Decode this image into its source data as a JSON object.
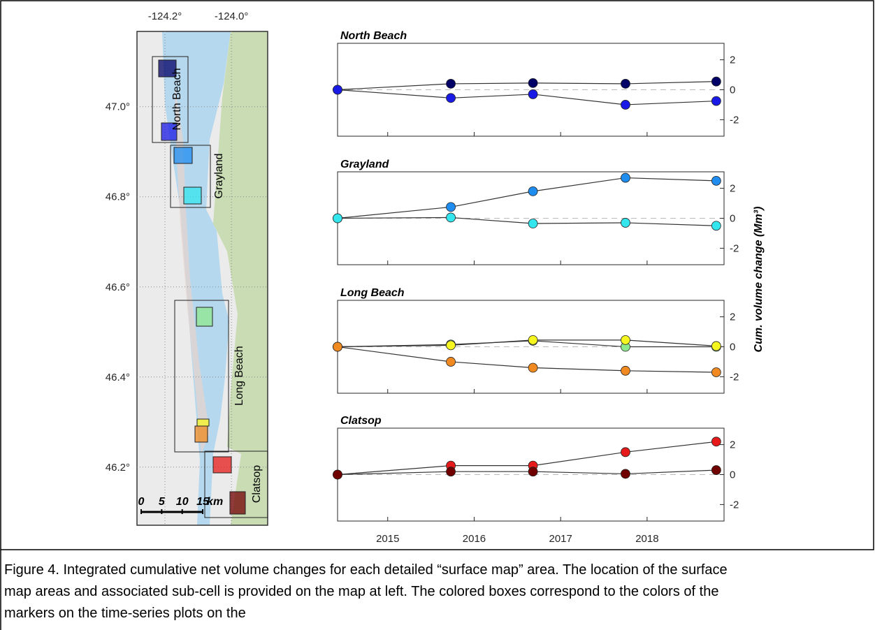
{
  "map": {
    "xlim": [
      -124.284,
      -123.891
    ],
    "ylim": [
      46.071,
      47.167
    ],
    "xticks": [
      {
        "value": -124.2,
        "label": "-124.2°"
      },
      {
        "value": -124.0,
        "label": "-124.0°"
      }
    ],
    "yticks": [
      {
        "value": 47.0,
        "label": "47.0°"
      },
      {
        "value": 46.8,
        "label": "46.8°"
      },
      {
        "value": 46.6,
        "label": "46.6°"
      },
      {
        "value": 46.4,
        "label": "46.4°"
      },
      {
        "value": 46.2,
        "label": "46.2°"
      }
    ],
    "scale_bar": {
      "ticks": [
        0,
        5,
        10,
        15
      ],
      "unit": "km"
    }
  },
  "ylabel": "Cum. volume change (Mm³)",
  "chart_data": [
    {
      "type": "line",
      "title": "North Beach",
      "x": [
        2014.42,
        2015.73,
        2016.68,
        2017.75,
        2018.8
      ],
      "xlim": [
        2014.42,
        2018.89
      ],
      "xticks": [
        2015,
        2016,
        2017,
        2018
      ],
      "ylim": [
        -3.1,
        3.1
      ],
      "yticks": [
        -2,
        0,
        2
      ],
      "series": [
        {
          "color": "#000066",
          "values": [
            0,
            0.4,
            0.45,
            0.4,
            0.55
          ]
        },
        {
          "color": "#1a1ae6",
          "values": [
            0,
            -0.55,
            -0.3,
            -1.0,
            -0.75
          ]
        }
      ]
    },
    {
      "type": "line",
      "title": "Grayland",
      "x": [
        2014.42,
        2015.73,
        2016.68,
        2017.75,
        2018.8
      ],
      "xlim": [
        2014.42,
        2018.89
      ],
      "xticks": [
        2015,
        2016,
        2017,
        2018
      ],
      "ylim": [
        -3.1,
        3.1
      ],
      "yticks": [
        -2,
        0,
        2
      ],
      "series": [
        {
          "color": "#1f8cf0",
          "values": [
            0,
            0.75,
            1.8,
            2.7,
            2.5
          ]
        },
        {
          "color": "#33e6ee",
          "values": [
            0,
            0.05,
            -0.35,
            -0.3,
            -0.5
          ]
        }
      ]
    },
    {
      "type": "line",
      "title": "Long Beach",
      "x": [
        2014.42,
        2015.73,
        2016.68,
        2017.75,
        2018.8
      ],
      "xlim": [
        2014.42,
        2018.89
      ],
      "xticks": [
        2015,
        2016,
        2017,
        2018
      ],
      "ylim": [
        -3.1,
        3.1
      ],
      "yticks": [
        -2,
        0,
        2
      ],
      "series": [
        {
          "color": "#8ee88e",
          "values": [
            0,
            0.15,
            0.4,
            0,
            0
          ]
        },
        {
          "color": "#f5f520",
          "values": [
            0,
            0.1,
            0.45,
            0.45,
            0.05
          ]
        },
        {
          "color": "#f08a20",
          "values": [
            0,
            -1.0,
            -1.4,
            -1.6,
            -1.7
          ]
        }
      ]
    },
    {
      "type": "line",
      "title": "Clatsop",
      "x": [
        2014.42,
        2015.73,
        2016.68,
        2017.75,
        2018.8
      ],
      "xlim": [
        2014.42,
        2018.89
      ],
      "xticks": [
        2015,
        2016,
        2017,
        2018
      ],
      "ylim": [
        -3.1,
        3.1
      ],
      "yticks": [
        -2,
        0,
        2
      ],
      "series": [
        {
          "color": "#e61a1a",
          "values": [
            0,
            0.6,
            0.6,
            1.5,
            2.2
          ]
        },
        {
          "color": "#700000",
          "values": [
            0,
            0.2,
            0.2,
            0.05,
            0.3
          ]
        }
      ]
    }
  ],
  "caption": "Figure 4. Integrated cumulative net volume changes for each detailed “surface map” area. The location of the surface map areas and associated sub-cell is provided on the map at left. The colored boxes correspond to the colors of the markers on the time-series plots on the"
}
